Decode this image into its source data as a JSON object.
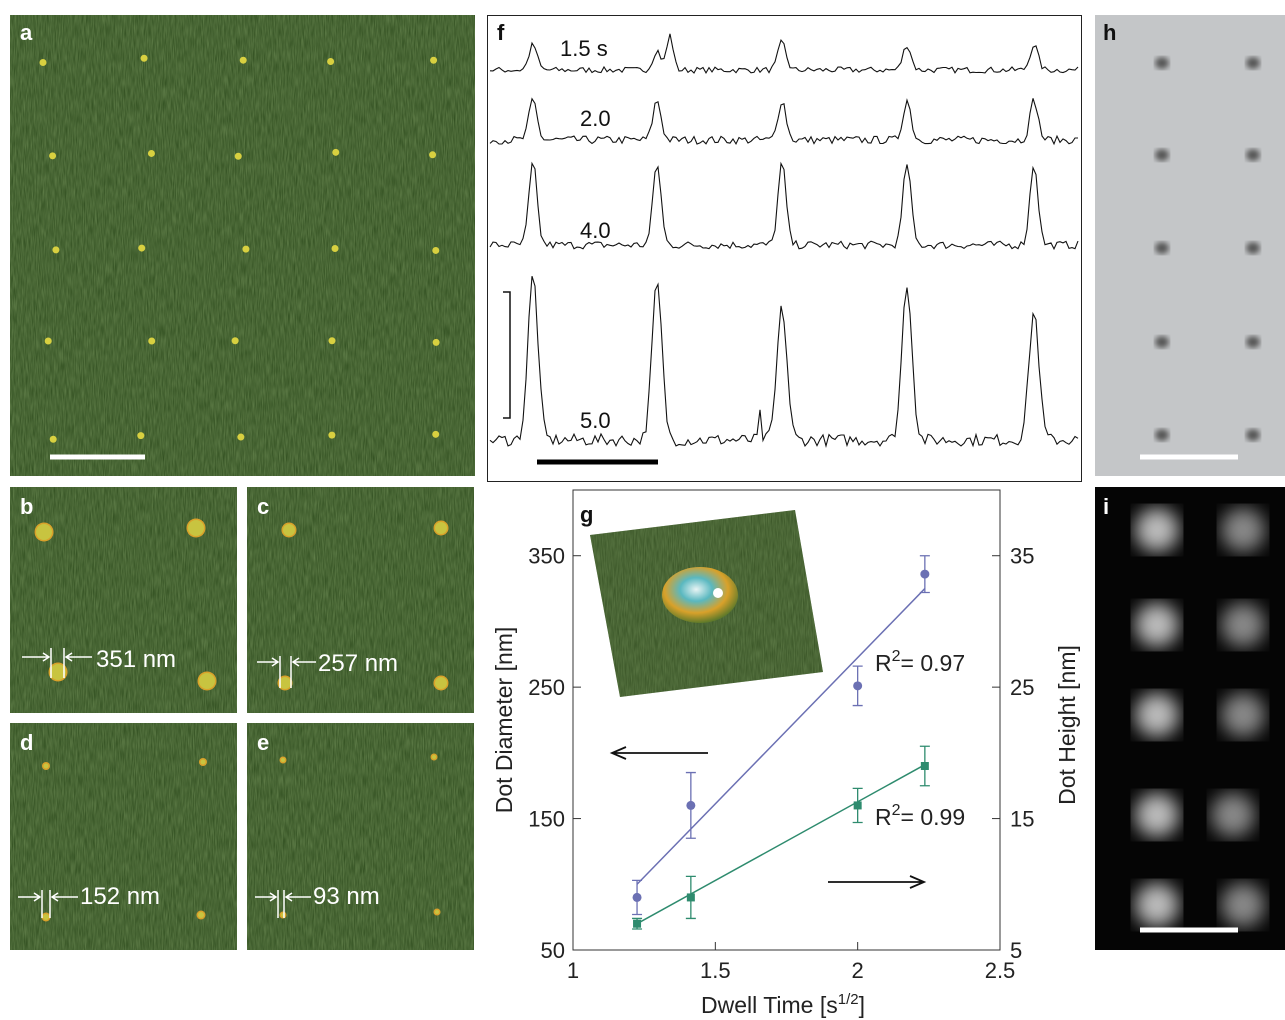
{
  "panels": [
    {
      "label": "a"
    },
    {
      "label": "b",
      "annotation": "351 nm"
    },
    {
      "label": "c",
      "annotation": "257 nm"
    },
    {
      "label": "d",
      "annotation": "152 nm"
    },
    {
      "label": "e",
      "annotation": "93 nm"
    },
    {
      "label": "f",
      "traces": [
        "1.5 s",
        "2.0",
        "4.0",
        "5.0"
      ]
    },
    {
      "label": "g"
    },
    {
      "label": "h"
    },
    {
      "label": "i"
    }
  ],
  "chart_data": {
    "type": "scatter",
    "x_label": {
      "text": "Dwell Time [s",
      "sup": "1/2",
      "end": "]"
    },
    "y_label": "Dot Diameter [nm]",
    "y2_label": "Dot Height [nm]",
    "xlim": [
      1,
      2.5
    ],
    "xticks": [
      1,
      1.5,
      2,
      2.5
    ],
    "ylim": [
      50,
      400
    ],
    "yticks": [
      50,
      150,
      250,
      350
    ],
    "y2lim": [
      5,
      40
    ],
    "y2ticks": [
      5,
      15,
      25,
      35
    ],
    "series": [
      {
        "color": "#6b70b3",
        "x": [
          1.225,
          1.414,
          2,
          2.236
        ],
        "values": [
          90,
          160,
          251,
          336
        ],
        "errors": [
          13,
          25,
          15,
          14
        ],
        "fit": {
          "x": [
            1.225,
            2.236
          ],
          "values": [
            100,
            325
          ]
        },
        "annotation": {
          "base": "R",
          "sup": "2",
          "text": "= 0.97"
        }
      },
      {
        "color": "#2e8b6e",
        "axis": "y2",
        "x": [
          1.225,
          1.414,
          2,
          2.236
        ],
        "values": [
          7,
          9,
          16,
          19
        ],
        "errors": [
          0.4,
          1.6,
          1.3,
          1.5
        ],
        "fit": {
          "x": [
            1.225,
            2.236
          ],
          "values": [
            7,
            19.1
          ]
        },
        "annotation": {
          "base": "R",
          "sup": "2",
          "text": "= 0.99"
        }
      }
    ]
  }
}
